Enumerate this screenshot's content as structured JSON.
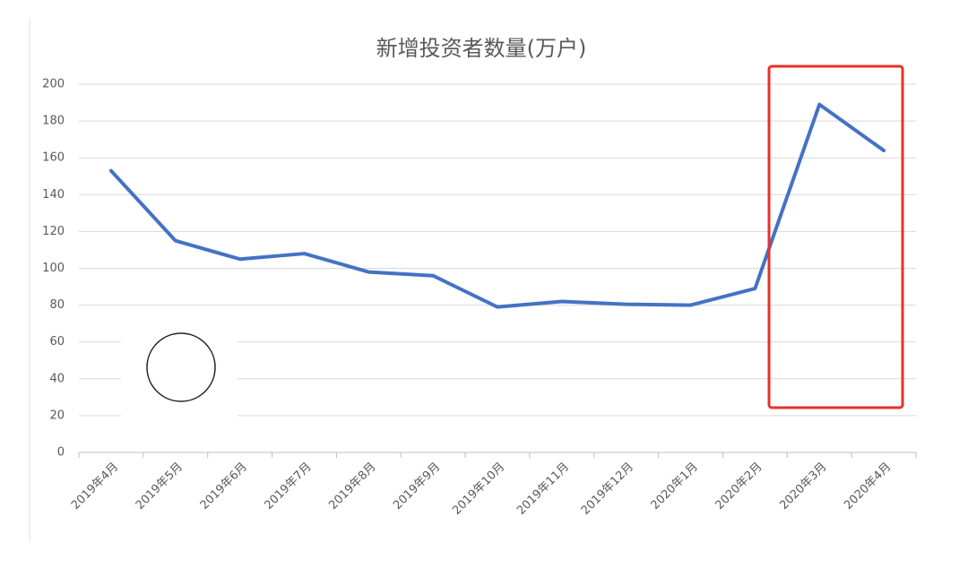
{
  "chart_data": {
    "type": "line",
    "title": "新增投资者数量(万户)",
    "categories": [
      "2019年4月",
      "2019年5月",
      "2019年6月",
      "2019年7月",
      "2019年8月",
      "2019年9月",
      "2019年10月",
      "2019年11月",
      "2019年12月",
      "2020年1月",
      "2020年2月",
      "2020年3月",
      "2020年4月"
    ],
    "series": [
      {
        "name": "新增投资者数量",
        "color": "#4472c4",
        "values": [
          153,
          115,
          105,
          108,
          98,
          96,
          79,
          82,
          80.5,
          80,
          89,
          189,
          164
        ]
      }
    ],
    "ylim": [
      0,
      200
    ],
    "yticks": [
      0,
      20,
      40,
      60,
      80,
      100,
      120,
      140,
      160,
      180,
      200
    ],
    "grid": true
  }
}
